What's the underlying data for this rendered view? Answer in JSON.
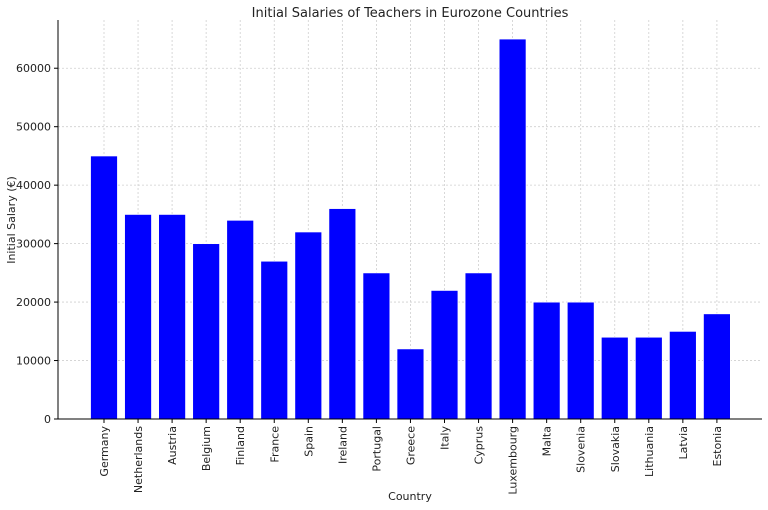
{
  "chart_data": {
    "type": "bar",
    "title": "Initial Salaries of Teachers in Eurozone Countries",
    "xlabel": "Country",
    "ylabel": "Initial Salary (€)",
    "categories": [
      "Germany",
      "Netherlands",
      "Austria",
      "Belgium",
      "Finland",
      "France",
      "Spain",
      "Ireland",
      "Portugal",
      "Greece",
      "Italy",
      "Cyprus",
      "Luxembourg",
      "Malta",
      "Slovenia",
      "Slovakia",
      "Lithuania",
      "Latvia",
      "Estonia"
    ],
    "values": [
      45000,
      35000,
      35000,
      30000,
      34000,
      27000,
      32000,
      36000,
      25000,
      12000,
      22000,
      25000,
      65000,
      20000,
      20000,
      14000,
      14000,
      15000,
      18000
    ],
    "yticks": [
      0,
      10000,
      20000,
      30000,
      40000,
      50000,
      60000
    ],
    "ylim": [
      0,
      68250
    ],
    "grid": true,
    "colors": {
      "bar": "#0000ff",
      "bar_edge": "#ffffff",
      "axis": "#000000"
    }
  }
}
